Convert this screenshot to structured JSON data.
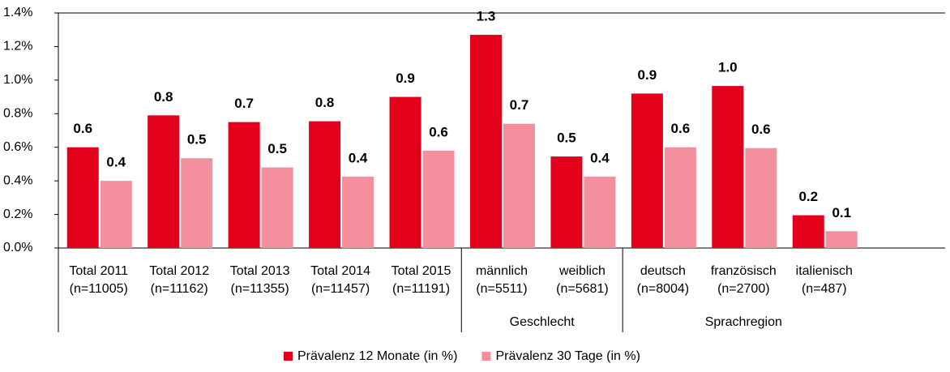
{
  "chart_data": {
    "type": "bar",
    "categories": [
      [
        "Total 2011",
        "(n=11005)"
      ],
      [
        "Total 2012",
        "(n=11162)"
      ],
      [
        "Total 2013",
        "(n=11355)"
      ],
      [
        "Total 2014",
        "(n=11457)"
      ],
      [
        "Total 2015",
        "(n=11191)"
      ],
      [
        "männlich",
        "(n=5511)"
      ],
      [
        "weiblich",
        "(n=5681)"
      ],
      [
        "deutsch",
        "(n=8004)"
      ],
      [
        "französisch",
        "(n=2700)"
      ],
      [
        "italienisch",
        "(n=487)"
      ]
    ],
    "groups": [
      {
        "label": "Geschlecht",
        "categories": [
          5,
          6
        ]
      },
      {
        "label": "Sprachregion",
        "categories": [
          7,
          9
        ]
      }
    ],
    "series": [
      {
        "name": "Prävalenz 12 Monate (in %)",
        "color": "#e2001a",
        "values": [
          0.6,
          0.79,
          0.75,
          0.755,
          0.9,
          1.27,
          0.545,
          0.92,
          0.965,
          0.195
        ],
        "value_labels": [
          "0.6",
          "0.8",
          "0.7",
          "0.8",
          "0.9",
          "1.3",
          "0.5",
          "0.9",
          "1.0",
          "0.2"
        ]
      },
      {
        "name": "Prävalenz 30 Tage (in %)",
        "color": "#f4909e",
        "values": [
          0.4,
          0.535,
          0.48,
          0.425,
          0.58,
          0.74,
          0.425,
          0.6,
          0.595,
          0.1
        ],
        "value_labels": [
          "0.4",
          "0.5",
          "0.5",
          "0.4",
          "0.6",
          "0.7",
          "0.4",
          "0.6",
          "0.6",
          "0.1"
        ]
      }
    ],
    "ylim": [
      0,
      1.4
    ],
    "yticks": [
      {
        "value": 0,
        "label": "0.0%"
      },
      {
        "value": 0.2,
        "label": "0.2%"
      },
      {
        "value": 0.4,
        "label": "0.4%"
      },
      {
        "value": 0.6,
        "label": "0.6%"
      },
      {
        "value": 0.8,
        "label": "0.8%"
      },
      {
        "value": 1.0,
        "label": "1.0%"
      },
      {
        "value": 1.2,
        "label": "1.2%"
      },
      {
        "value": 1.4,
        "label": "1.4%"
      }
    ],
    "legend": "bottom"
  }
}
